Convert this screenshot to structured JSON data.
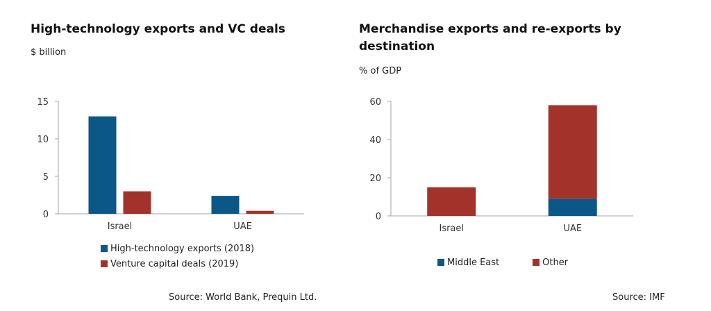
{
  "chart_data": [
    {
      "type": "bar",
      "title": "High-technology exports and VC deals",
      "unit": "$ billion",
      "categories": [
        "Israel",
        "UAE"
      ],
      "series": [
        {
          "name": "High-technology exports (2018)",
          "values": [
            13.0,
            2.4
          ]
        },
        {
          "name": "Venture capital deals (2019)",
          "values": [
            3.0,
            0.4
          ]
        }
      ],
      "ylim": [
        0,
        15
      ],
      "yticks": [
        0,
        5,
        10,
        15
      ],
      "legend": "bottom",
      "grid": false,
      "source": "Source: World Bank, Prequin Ltd."
    },
    {
      "type": "bar",
      "stacked": true,
      "title_lines": [
        "Merchandise exports and re-exports by",
        "destination"
      ],
      "unit": "% of GDP",
      "categories": [
        "Israel",
        "UAE"
      ],
      "series": [
        {
          "name": "Middle East",
          "values": [
            0,
            9
          ]
        },
        {
          "name": "Other",
          "values": [
            15,
            49
          ]
        }
      ],
      "ylim": [
        0,
        60
      ],
      "yticks": [
        0,
        20,
        40,
        60
      ],
      "legend": "bottom",
      "grid": false,
      "source": "Source: IMF"
    }
  ],
  "colors": {
    "blue": "#0b5788",
    "red": "#a3322b",
    "axis": "#a6a6a6"
  }
}
